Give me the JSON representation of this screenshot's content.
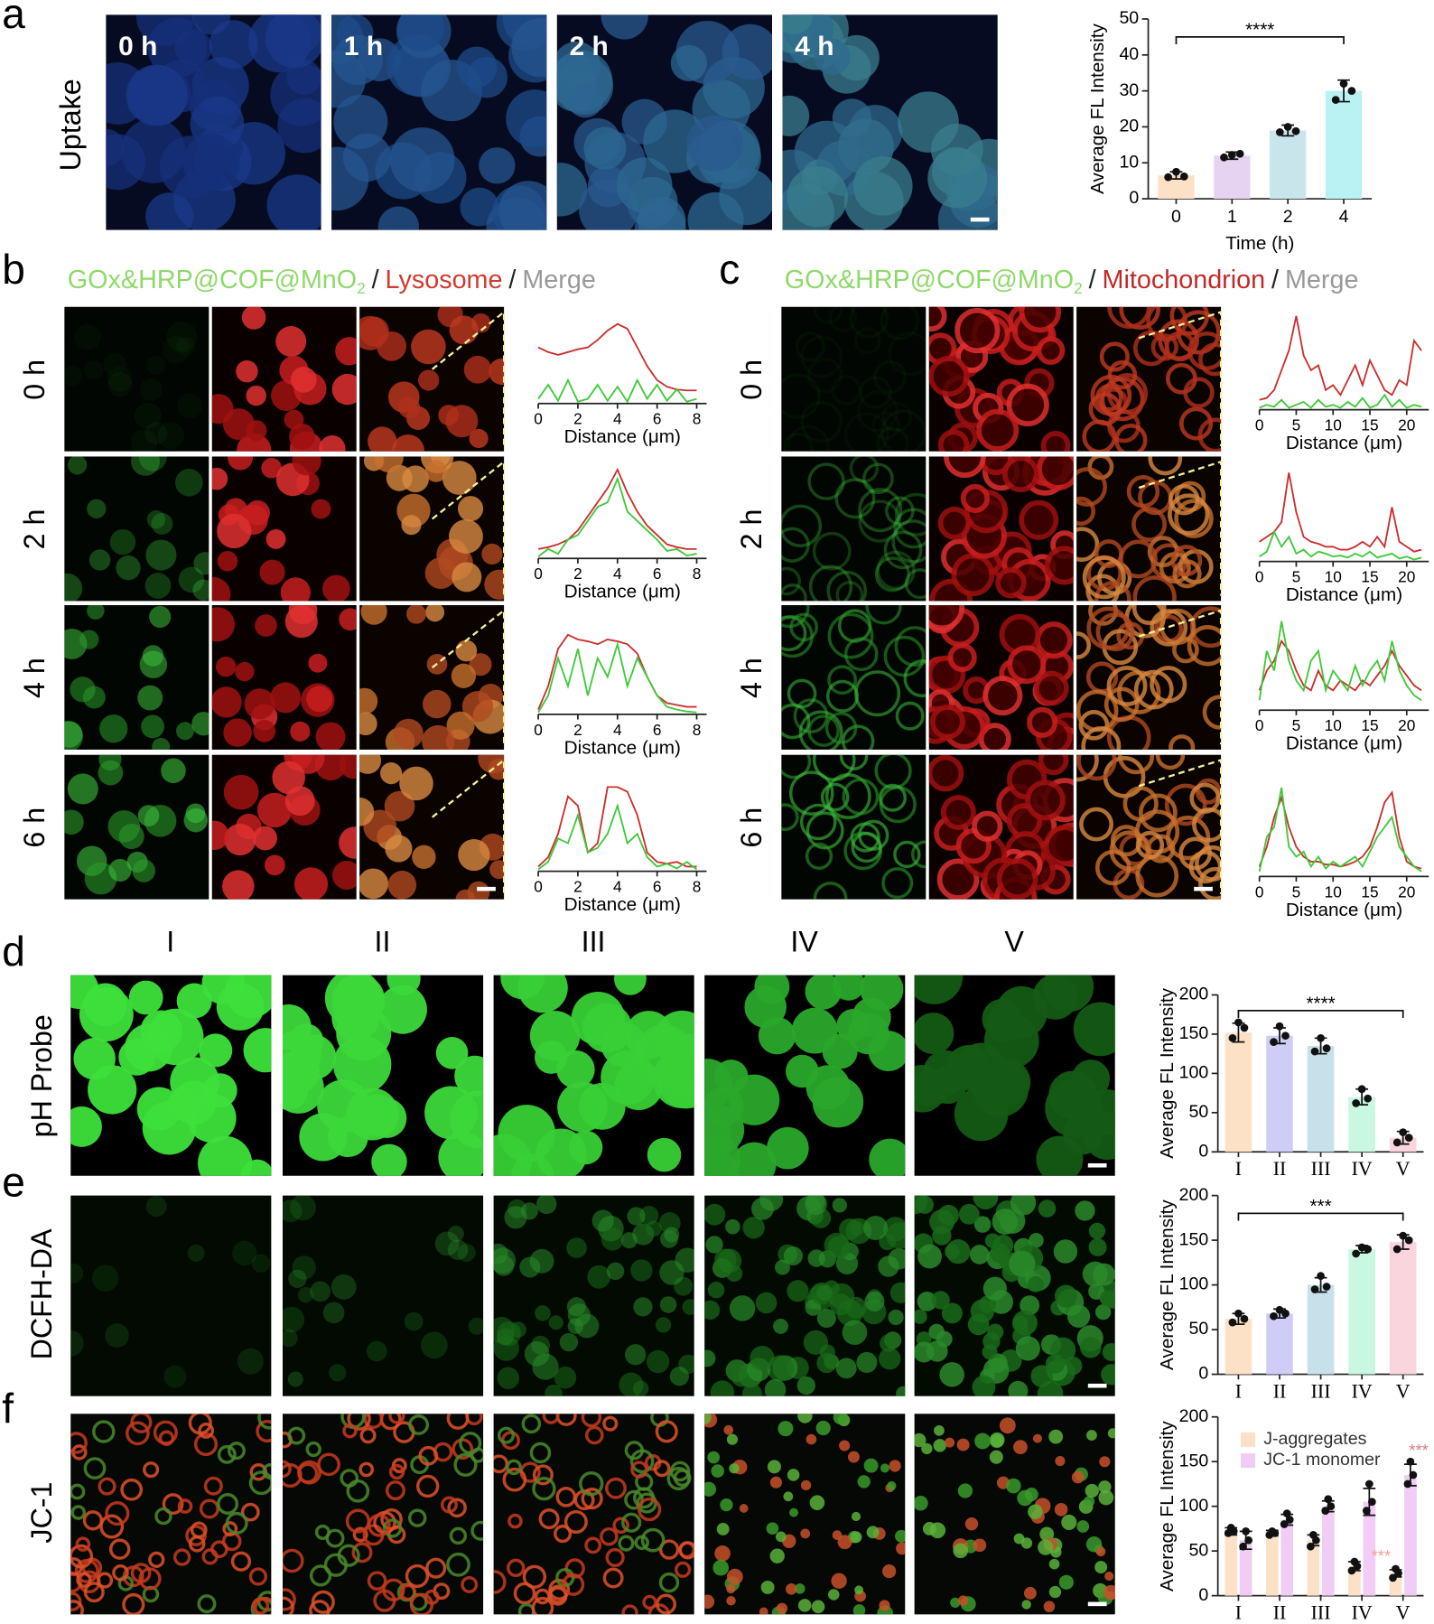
{
  "panel_labels": [
    "a",
    "b",
    "c",
    "d",
    "e",
    "f"
  ],
  "panel_a": {
    "row_label": "Uptake",
    "image_labels": [
      "0 h",
      "1 h",
      "2 h",
      "4 h"
    ]
  },
  "panel_b": {
    "legend": [
      "GOx&HRP@COF@MnO",
      "2",
      "/",
      "Lysosome",
      "/",
      "Merge"
    ],
    "row_labels": [
      "0 h",
      "2 h",
      "4 h",
      "6 h"
    ]
  },
  "panel_c": {
    "legend": [
      "GOx&HRP@COF@MnO",
      "2",
      "/",
      "Mitochondrion",
      "/",
      "Merge"
    ],
    "row_labels": [
      "0 h",
      "2 h",
      "4 h",
      "6 h"
    ]
  },
  "panel_def": {
    "column_labels": [
      "I",
      "II",
      "III",
      "IV",
      "V"
    ],
    "row_labels": [
      "pH Probe",
      "DCFH-DA",
      "JC-1"
    ]
  },
  "chart_data": [
    {
      "type": "bar",
      "xlabel": "Time (h)",
      "ylabel": "Average FL Intensity",
      "categories": [
        "0",
        "1",
        "2",
        "4"
      ],
      "values": [
        6.5,
        12,
        19,
        30
      ],
      "errors": [
        1,
        1,
        1.5,
        3
      ],
      "points": [
        [
          6,
          7.5,
          6.2
        ],
        [
          11.5,
          12.2,
          12.5
        ],
        [
          18.5,
          20,
          18.8
        ],
        [
          27.5,
          32,
          30
        ]
      ],
      "colors": [
        "#fde1c6",
        "#e6d3f1",
        "#c9e5ec",
        "#baf1f2"
      ],
      "ylim": [
        0,
        50
      ],
      "yticks": [
        0,
        10,
        20,
        30,
        40,
        50
      ],
      "annotation": "****"
    },
    {
      "type": "line",
      "xlabel": "Distance (μm)",
      "x": [
        0,
        0.5,
        1,
        1.5,
        2,
        2.5,
        3,
        3.5,
        4,
        4.5,
        5,
        5.5,
        6,
        6.5,
        7,
        7.5,
        8
      ],
      "xlim": [
        0,
        8.5
      ],
      "xticks": [
        0,
        2,
        4,
        6,
        8
      ],
      "ylim": [
        0,
        100
      ],
      "series": [
        {
          "color": "#c9302c",
          "values": [
            60,
            55,
            52,
            55,
            58,
            60,
            68,
            78,
            85,
            80,
            60,
            40,
            25,
            18,
            15,
            14,
            14
          ]
        },
        {
          "color": "#3fc93a",
          "values": [
            5,
            20,
            3,
            25,
            2,
            5,
            20,
            3,
            18,
            2,
            25,
            5,
            20,
            3,
            15,
            2,
            5
          ]
        }
      ]
    },
    {
      "type": "line",
      "xlabel": "Distance (μm)",
      "x": [
        0,
        0.5,
        1,
        1.5,
        2,
        2.5,
        3,
        3.5,
        4,
        4.5,
        5,
        5.5,
        6,
        6.5,
        7,
        7.5,
        8
      ],
      "xlim": [
        0,
        8.5
      ],
      "xticks": [
        0,
        2,
        4,
        6,
        8
      ],
      "ylim": [
        0,
        100
      ],
      "series": [
        {
          "color": "#c9302c",
          "values": [
            10,
            12,
            15,
            20,
            30,
            45,
            60,
            75,
            95,
            70,
            50,
            35,
            25,
            15,
            12,
            10,
            10
          ]
        },
        {
          "color": "#3fc93a",
          "values": [
            2,
            10,
            5,
            20,
            25,
            40,
            55,
            60,
            85,
            50,
            40,
            30,
            20,
            8,
            10,
            3,
            5
          ]
        }
      ]
    },
    {
      "type": "line",
      "xlabel": "Distance (μm)",
      "x": [
        0,
        0.5,
        1,
        1.5,
        2,
        2.5,
        3,
        3.5,
        4,
        4.5,
        5,
        5.5,
        6,
        6.5,
        7,
        7.5,
        8
      ],
      "xlim": [
        0,
        8.5
      ],
      "xticks": [
        0,
        2,
        4,
        6,
        8
      ],
      "ylim": [
        0,
        100
      ],
      "series": [
        {
          "color": "#c9302c",
          "values": [
            5,
            30,
            70,
            85,
            80,
            78,
            75,
            80,
            78,
            75,
            65,
            40,
            20,
            12,
            10,
            8,
            8
          ]
        },
        {
          "color": "#3fc93a",
          "values": [
            2,
            20,
            60,
            30,
            70,
            20,
            60,
            40,
            75,
            30,
            60,
            40,
            20,
            8,
            5,
            3,
            2
          ]
        }
      ]
    },
    {
      "type": "line",
      "xlabel": "Distance (μm)",
      "x": [
        0,
        0.5,
        1,
        1.5,
        2,
        2.5,
        3,
        3.5,
        4,
        4.5,
        5,
        5.5,
        6,
        6.5,
        7,
        7.5,
        8
      ],
      "xlim": [
        0,
        8.5
      ],
      "xticks": [
        0,
        2,
        4,
        6,
        8
      ],
      "ylim": [
        0,
        100
      ],
      "series": [
        {
          "color": "#c9302c",
          "values": [
            5,
            15,
            40,
            80,
            70,
            20,
            30,
            90,
            90,
            85,
            60,
            20,
            10,
            8,
            10,
            5,
            5
          ]
        },
        {
          "color": "#3fc93a",
          "values": [
            2,
            10,
            35,
            30,
            60,
            20,
            25,
            40,
            70,
            30,
            40,
            15,
            5,
            8,
            3,
            10,
            2
          ]
        }
      ]
    },
    {
      "type": "line",
      "xlabel": "Distance (μm)",
      "x": [
        0,
        1,
        2,
        3,
        4,
        5,
        6,
        7,
        8,
        9,
        10,
        11,
        12,
        13,
        14,
        15,
        16,
        17,
        18,
        19,
        20,
        21,
        22
      ],
      "xlim": [
        0,
        23
      ],
      "xticks": [
        0,
        5,
        10,
        15,
        20
      ],
      "ylim": [
        0,
        100
      ],
      "series": [
        {
          "color": "#c9302c",
          "values": [
            10,
            12,
            20,
            40,
            60,
            95,
            55,
            40,
            45,
            20,
            25,
            15,
            30,
            45,
            25,
            50,
            35,
            20,
            15,
            30,
            25,
            70,
            60
          ]
        },
        {
          "color": "#3fc93a",
          "values": [
            2,
            5,
            3,
            10,
            2,
            5,
            8,
            2,
            10,
            3,
            5,
            2,
            8,
            3,
            12,
            2,
            5,
            15,
            3,
            10,
            2,
            5,
            3
          ]
        }
      ]
    },
    {
      "type": "line",
      "xlabel": "Distance (μm)",
      "x": [
        0,
        1,
        2,
        3,
        4,
        5,
        6,
        7,
        8,
        9,
        10,
        11,
        12,
        13,
        14,
        15,
        16,
        17,
        18,
        19,
        20,
        21,
        22
      ],
      "xlim": [
        0,
        23
      ],
      "xticks": [
        0,
        5,
        10,
        15,
        20
      ],
      "ylim": [
        0,
        100
      ],
      "series": [
        {
          "color": "#c9302c",
          "values": [
            20,
            25,
            30,
            40,
            90,
            50,
            25,
            20,
            18,
            15,
            15,
            12,
            12,
            15,
            20,
            15,
            25,
            15,
            55,
            20,
            15,
            10,
            12
          ]
        },
        {
          "color": "#3fc93a",
          "values": [
            5,
            10,
            30,
            15,
            25,
            8,
            12,
            5,
            10,
            8,
            5,
            6,
            4,
            8,
            5,
            10,
            4,
            6,
            8,
            3,
            5,
            2,
            4
          ]
        }
      ]
    },
    {
      "type": "line",
      "xlabel": "Distance (μm)",
      "x": [
        0,
        1,
        2,
        3,
        4,
        5,
        6,
        7,
        8,
        9,
        10,
        11,
        12,
        13,
        14,
        15,
        16,
        17,
        18,
        19,
        20,
        21,
        22
      ],
      "xlim": [
        0,
        23
      ],
      "xticks": [
        0,
        5,
        10,
        15,
        20
      ],
      "ylim": [
        0,
        100
      ],
      "series": [
        {
          "color": "#c9302c",
          "values": [
            20,
            40,
            50,
            70,
            60,
            40,
            25,
            20,
            40,
            25,
            20,
            30,
            25,
            20,
            30,
            25,
            35,
            45,
            60,
            45,
            35,
            25,
            20
          ]
        },
        {
          "color": "#3fc93a",
          "values": [
            10,
            60,
            40,
            90,
            50,
            30,
            20,
            50,
            60,
            20,
            40,
            30,
            20,
            45,
            25,
            40,
            50,
            30,
            70,
            40,
            25,
            15,
            10
          ]
        }
      ]
    },
    {
      "type": "line",
      "xlabel": "Distance (μm)",
      "x": [
        0,
        1,
        2,
        3,
        4,
        5,
        6,
        7,
        8,
        9,
        10,
        11,
        12,
        13,
        14,
        15,
        16,
        17,
        18,
        19,
        20,
        21,
        22
      ],
      "xlim": [
        0,
        23
      ],
      "xticks": [
        0,
        5,
        10,
        15,
        20
      ],
      "ylim": [
        0,
        100
      ],
      "series": [
        {
          "color": "#c9302c",
          "values": [
            10,
            30,
            60,
            80,
            50,
            30,
            20,
            15,
            15,
            12,
            12,
            10,
            12,
            15,
            20,
            30,
            50,
            75,
            85,
            40,
            15,
            10,
            8
          ]
        },
        {
          "color": "#3fc93a",
          "values": [
            5,
            40,
            50,
            90,
            30,
            20,
            25,
            10,
            20,
            8,
            15,
            10,
            15,
            20,
            10,
            25,
            40,
            50,
            60,
            30,
            20,
            10,
            5
          ]
        }
      ]
    },
    {
      "type": "bar",
      "ylabel": "Average FL Intensity",
      "categories": [
        "I",
        "II",
        "III",
        "IV",
        "V"
      ],
      "values": [
        152,
        148,
        135,
        70,
        18
      ],
      "errors": [
        12,
        10,
        10,
        10,
        8
      ],
      "points": [
        [
          145,
          165,
          158
        ],
        [
          140,
          160,
          148
        ],
        [
          128,
          145,
          132
        ],
        [
          62,
          80,
          68
        ],
        [
          12,
          25,
          18
        ]
      ],
      "colors": [
        "#fde1c6",
        "#cfcdf5",
        "#c7e1ea",
        "#c9f7e1",
        "#fad5dd"
      ],
      "ylim": [
        0,
        200
      ],
      "yticks": [
        0,
        50,
        100,
        150,
        200
      ],
      "annotation": "****"
    },
    {
      "type": "bar",
      "ylabel": "Average FL Intensity",
      "categories": [
        "I",
        "II",
        "III",
        "IV",
        "V"
      ],
      "values": [
        62,
        68,
        100,
        140,
        148
      ],
      "errors": [
        6,
        5,
        8,
        4,
        8
      ],
      "points": [
        [
          58,
          68,
          62
        ],
        [
          65,
          72,
          68
        ],
        [
          95,
          110,
          98
        ],
        [
          135,
          142,
          140
        ],
        [
          140,
          155,
          150
        ]
      ],
      "colors": [
        "#fde1c6",
        "#cfcdf5",
        "#c7e1ea",
        "#c9f7e1",
        "#fad5dd"
      ],
      "ylim": [
        0,
        200
      ],
      "yticks": [
        0,
        50,
        100,
        150,
        200
      ],
      "annotation": "***"
    },
    {
      "type": "grouped_bar",
      "ylabel": "Average FL Intensity",
      "categories": [
        "I",
        "II",
        "III",
        "IV",
        "V"
      ],
      "series": [
        {
          "name": "J-aggregates",
          "color": "#fde1c6",
          "values": [
            72,
            70,
            62,
            33,
            25
          ],
          "errors": [
            4,
            3,
            6,
            5,
            4
          ],
          "points": [
            [
              70,
              76,
              72
            ],
            [
              68,
              72,
              70
            ],
            [
              55,
              68,
              62
            ],
            [
              28,
              38,
              33
            ],
            [
              20,
              30,
              25
            ]
          ]
        },
        {
          "name": "JC-1 monomer",
          "color": "#f1cdf5",
          "values": [
            62,
            85,
            100,
            105,
            135
          ],
          "errors": [
            10,
            6,
            6,
            15,
            12
          ],
          "points": [
            [
              55,
              72,
              62
            ],
            [
              80,
              92,
              85
            ],
            [
              95,
              108,
              100
            ],
            [
              95,
              125,
              105
            ],
            [
              125,
              150,
              135
            ]
          ]
        }
      ],
      "ylim": [
        0,
        200
      ],
      "yticks": [
        0,
        50,
        100,
        150,
        200
      ],
      "annotations": [
        {
          "text": "***",
          "color": "#f2a09a"
        },
        {
          "text": "***",
          "color": "#e07a80"
        }
      ]
    }
  ]
}
